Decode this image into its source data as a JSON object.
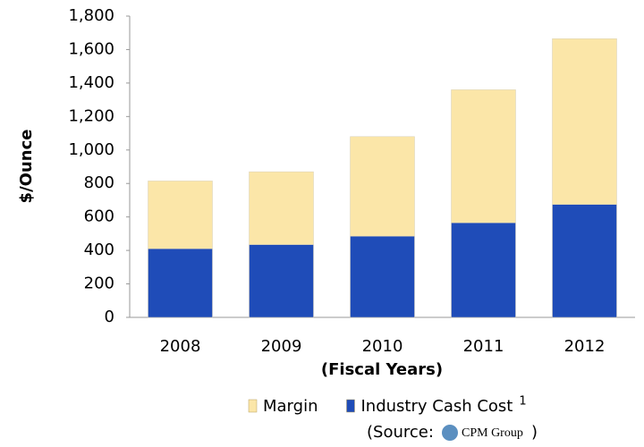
{
  "chart_data": {
    "type": "stacked_bar",
    "categories": [
      "2008",
      "2009",
      "2010",
      "2011",
      "2012"
    ],
    "series": [
      {
        "name": "Industry Cash Cost",
        "color": "#1f4cb8",
        "values": [
          410,
          435,
          485,
          565,
          675
        ]
      },
      {
        "name": "Margin",
        "color": "#fbe6a8",
        "values": [
          405,
          435,
          595,
          795,
          990
        ]
      }
    ],
    "legend_order": [
      1,
      0
    ],
    "footnote_marker": "1",
    "ylim": [
      0,
      1800
    ],
    "yticks": [
      0,
      200,
      400,
      600,
      800,
      {
        "value": 1000,
        "label": "1,000"
      },
      {
        "value": 1200,
        "label": "1,200"
      },
      {
        "value": 1400,
        "label": "1,400"
      },
      {
        "value": 1600,
        "label": "1,600"
      },
      {
        "value": 1800,
        "label": "1,800"
      }
    ],
    "y_label": "$/Ounce",
    "x_label": "(Fiscal Years)",
    "source": {
      "prefix": "(Source:",
      "name": "CPM Group",
      "suffix": ")"
    }
  }
}
